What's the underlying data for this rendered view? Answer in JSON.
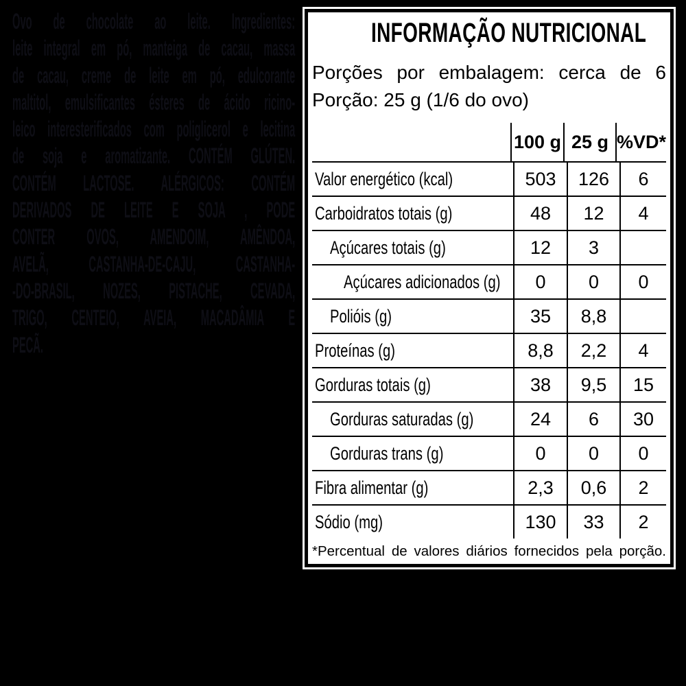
{
  "colors": {
    "background": "#000000",
    "panel_background": "#ffffff",
    "panel_border": "#000000",
    "table_text": "#000000",
    "ingredients_text": "#0e0e15"
  },
  "ingredients": {
    "lines": [
      "Ovo de chocolate ao leite. Ingredientes:",
      "leite integral em pó, manteiga de cacau, massa",
      "de cacau, creme de leite em pó, edulcorante",
      "maltitol, emulsificantes ésteres de ácido ricino-",
      "leico interesterificados com poliglicerol e lecitina",
      "de soja e aromatizante. CONTÉM GLÚTEN.",
      "CONTÉM LACTOSE. ALÉRGICOS: CONTÉM",
      "DERIVADOS DE LEITE E SOJA , PODE",
      "CONTER OVOS, AMENDOIM, AMÊNDOA,",
      "AVELÃ, CASTANHA-DE-CAJU, CASTANHA-",
      "-DO-BRASIL, NOZES, PISTACHE, CEVADA,",
      "TRIGO, CENTEIO, AVEIA, MACADÂMIA E",
      "PECÃ."
    ]
  },
  "panel": {
    "title": "INFORMAÇÃO NUTRICIONAL",
    "servings_line": "Porções por embalagem: cerca de 6",
    "portion_line": "Porção: 25 g (1/6 do ovo)",
    "columns": [
      "100 g",
      "25 g",
      "%VD*"
    ],
    "rows": [
      {
        "label": "Valor energético (kcal)",
        "v100": "503",
        "v25": "126",
        "vd": "6"
      },
      {
        "label": "Carboidratos totais (g)",
        "v100": "48",
        "v25": "12",
        "vd": "4"
      },
      {
        "label": "Açúcares totais (g)",
        "v100": "12",
        "v25": "3",
        "vd": ""
      },
      {
        "label": "Açúcares adicionados (g)",
        "v100": "0",
        "v25": "0",
        "vd": "0"
      },
      {
        "label": "Polióis (g)",
        "v100": "35",
        "v25": "8,8",
        "vd": ""
      },
      {
        "label": "Proteínas (g)",
        "v100": "8,8",
        "v25": "2,2",
        "vd": "4"
      },
      {
        "label": "Gorduras totais (g)",
        "v100": "38",
        "v25": "9,5",
        "vd": "15"
      },
      {
        "label": "Gorduras saturadas (g)",
        "v100": "24",
        "v25": "6",
        "vd": "30"
      },
      {
        "label": "Gorduras trans (g)",
        "v100": "0",
        "v25": "0",
        "vd": "0"
      },
      {
        "label": "Fibra alimentar (g)",
        "v100": "2,3",
        "v25": "0,6",
        "vd": "2"
      },
      {
        "label": "Sódio (mg)",
        "v100": "130",
        "v25": "33",
        "vd": "2"
      }
    ],
    "footnote": "*Percentual de valores diários fornecidos pela porção."
  }
}
